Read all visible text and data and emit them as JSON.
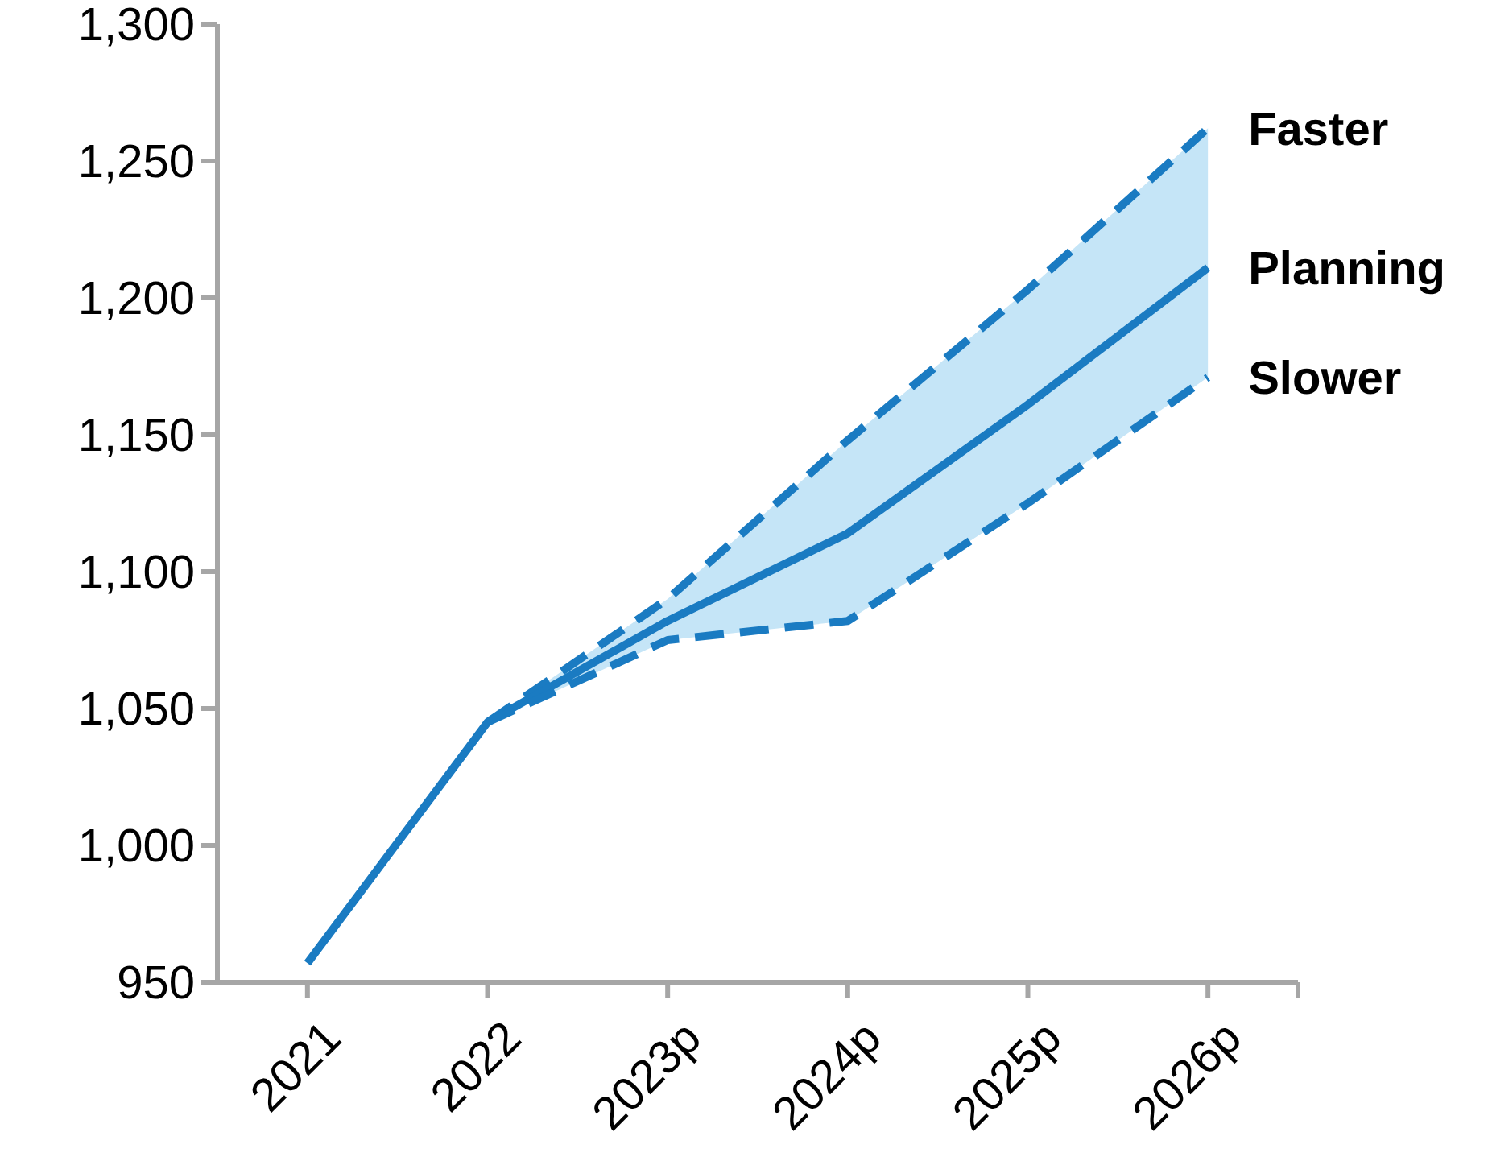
{
  "chart_data": {
    "type": "line",
    "categories": [
      "2021",
      "2022",
      "2023p",
      "2024p",
      "2025p",
      "2026p"
    ],
    "series": [
      {
        "name": "Faster",
        "color": "#1a7bc2",
        "line_style": "dashed",
        "values": [
          null,
          1045,
          1090,
          1148,
          1203,
          1262
        ]
      },
      {
        "name": "Planning",
        "color": "#1a7bc2",
        "line_style": "solid",
        "values": [
          957,
          1045,
          1082,
          1114,
          1161,
          1211
        ],
        "lower": [
          null,
          1045,
          1075,
          1082,
          1125,
          1171
        ],
        "upper": [
          null,
          1045,
          1090,
          1148,
          1203,
          1262
        ]
      },
      {
        "name": "Slower",
        "color": "#1a7bc2",
        "line_style": "dashed",
        "values": [
          null,
          1045,
          1075,
          1082,
          1125,
          1171
        ]
      }
    ],
    "ylim": [
      950,
      1300
    ],
    "yticks": [
      950,
      {
        "value": 1000,
        "label": "1,000"
      },
      {
        "value": 1050,
        "label": "1,050"
      },
      {
        "value": 1100,
        "label": "1,100"
      },
      {
        "value": 1150,
        "label": "1,150"
      },
      {
        "value": 1200,
        "label": "1,200"
      },
      {
        "value": 1250,
        "label": "1,250"
      },
      {
        "value": 1300,
        "label": "1,300"
      }
    ],
    "grid": false
  }
}
